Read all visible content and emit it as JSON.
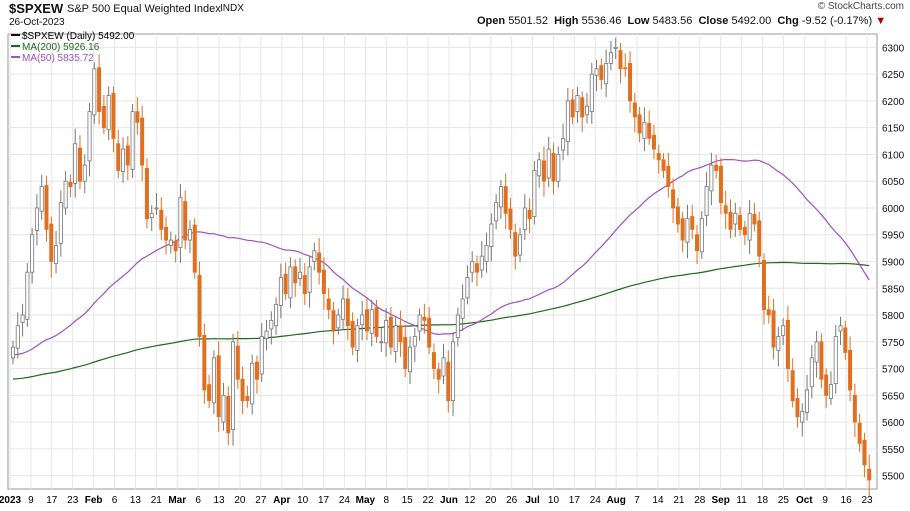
{
  "header": {
    "symbol": "$SPXEW",
    "name": "S&P 500 Equal Weighted Index",
    "exchange": "INDX",
    "date": "26-Oct-2023",
    "open_label": "Open",
    "open": "5501.52",
    "high_label": "High",
    "high": "5536.46",
    "low_label": "Low",
    "low": "5483.56",
    "close_label": "Close",
    "close": "5492.00",
    "chg_label": "Chg",
    "chg": "-9.52 (-0.17%)",
    "brand": "© StockCharts.com"
  },
  "legend": {
    "price": "$SPXEW (Daily) 5492.00",
    "ma200": "MA(200) 5926.16",
    "ma50": "MA(50) 5835.72"
  },
  "colors": {
    "up": "#a8a8a8",
    "down": "#e07020",
    "ma200": "#1d6b1d",
    "ma50": "#a24fc0",
    "grid": "#e6e6e6"
  },
  "chart_data": {
    "type": "candlestick",
    "ylim": [
      5475,
      6325
    ],
    "y_ticks": [
      5500,
      5550,
      5600,
      5650,
      5700,
      5750,
      5800,
      5850,
      5900,
      5950,
      6000,
      6050,
      6100,
      6150,
      6200,
      6250,
      6300
    ],
    "x_labels": [
      "2023",
      "9",
      "17",
      "23",
      "Feb",
      "6",
      "13",
      "21",
      "Mar",
      "6",
      "13",
      "20",
      "27",
      "Apr",
      "10",
      "17",
      "24",
      "May",
      "8",
      "15",
      "22",
      "Jun",
      "12",
      "20",
      "26",
      "Jul",
      "10",
      "17",
      "24",
      "Aug",
      "7",
      "14",
      "21",
      "28",
      "Sep",
      "11",
      "18",
      "25",
      "Oct",
      "9",
      "16",
      "23"
    ],
    "x_label_bold": [
      "2023",
      "Feb",
      "Mar",
      "Apr",
      "May",
      "Jun",
      "Jul",
      "Aug",
      "Sep",
      "Oct"
    ],
    "closes": [
      5740,
      5780,
      5800,
      5880,
      5950,
      6000,
      6040,
      5960,
      5900,
      5930,
      6010,
      6050,
      6040,
      6120,
      6050,
      6080,
      6180,
      6260,
      6180,
      6150,
      6210,
      6130,
      6070,
      6110,
      6080,
      6180,
      6160,
      6080,
      5980,
      5990,
      6000,
      5960,
      5940,
      5940,
      5920,
      6020,
      5940,
      5960,
      5880,
      5760,
      5660,
      5640,
      5720,
      5610,
      5650,
      5580,
      5750,
      5680,
      5640,
      5640,
      5710,
      5680,
      5760,
      5770,
      5790,
      5820,
      5870,
      5840,
      5890,
      5860,
      5880,
      5840,
      5890,
      5920,
      5880,
      5840,
      5810,
      5770,
      5800,
      5830,
      5780,
      5740,
      5780,
      5800,
      5770,
      5810,
      5760,
      5750,
      5790,
      5740,
      5780,
      5750,
      5700,
      5740,
      5760,
      5800,
      5790,
      5740,
      5700,
      5680,
      5720,
      5640,
      5750,
      5800,
      5830,
      5870,
      5900,
      5880,
      5910,
      5930,
      5970,
      6010,
      6040,
      5990,
      5960,
      5910,
      5950,
      6000,
      5980,
      6070,
      6090,
      6050,
      6110,
      6050,
      6100,
      6130,
      6200,
      6170,
      6210,
      6170,
      6190,
      6250,
      6260,
      6240,
      6270,
      6290,
      6300,
      6260,
      6260,
      6200,
      6170,
      6140,
      6160,
      6130,
      6110,
      6090,
      6070,
      6040,
      6000,
      5970,
      5940,
      5980,
      5960,
      5920,
      5980,
      6040,
      6080,
      6070,
      6010,
      5990,
      5960,
      5990,
      5960,
      5950,
      5990,
      5970,
      5910,
      5810,
      5800,
      5740,
      5760,
      5780,
      5700,
      5640,
      5610,
      5620,
      5660,
      5720,
      5750,
      5680,
      5650,
      5670,
      5760,
      5780,
      5730,
      5660,
      5600,
      5560,
      5520,
      5492
    ]
  }
}
